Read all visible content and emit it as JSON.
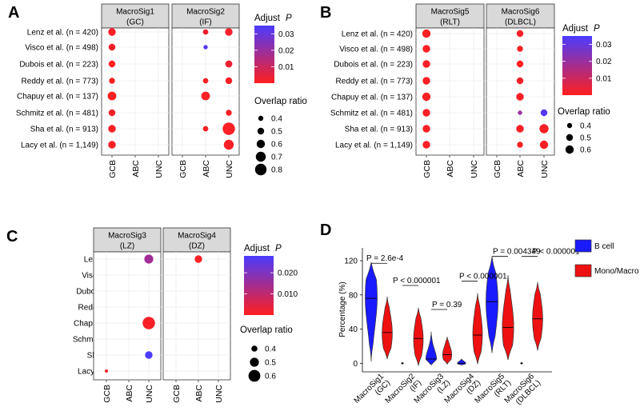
{
  "studies": [
    "Lenz et al. (n = 420)",
    "Visco et al. (n = 498)",
    "Dubois et al. (n = 223)",
    "Reddy et al. (n = 773)",
    "Chapuy et al. (n = 137)",
    "Schmitz et al. (n = 481)",
    "Sha et al. (n = 913)",
    "Lacy et al. (n = 1,149)"
  ],
  "subtypes": [
    "GCB",
    "ABC",
    "UNC"
  ],
  "panels": [
    {
      "id": "A",
      "label": "A",
      "chart_data": {
        "type": "scatter",
        "facets": [
          {
            "title": [
              "MacroSig1",
              "(GC)"
            ],
            "points": [
              {
                "study": 0,
                "subtype": "GCB",
                "ratio": 0.55,
                "p": 0.001
              },
              {
                "study": 1,
                "subtype": "GCB",
                "ratio": 0.5,
                "p": 0.001
              },
              {
                "study": 2,
                "subtype": "GCB",
                "ratio": 0.5,
                "p": 0.001
              },
              {
                "study": 3,
                "subtype": "GCB",
                "ratio": 0.45,
                "p": 0.001
              },
              {
                "study": 4,
                "subtype": "GCB",
                "ratio": 0.62,
                "p": 0.001
              },
              {
                "study": 5,
                "subtype": "GCB",
                "ratio": 0.5,
                "p": 0.001
              },
              {
                "study": 6,
                "subtype": "GCB",
                "ratio": 0.55,
                "p": 0.001
              },
              {
                "study": 7,
                "subtype": "GCB",
                "ratio": 0.55,
                "p": 0.001
              }
            ]
          },
          {
            "title": [
              "MacroSig2",
              "(IF)"
            ],
            "points": [
              {
                "study": 0,
                "subtype": "ABC",
                "ratio": 0.42,
                "p": 0.002
              },
              {
                "study": 0,
                "subtype": "UNC",
                "ratio": 0.55,
                "p": 0.002
              },
              {
                "study": 1,
                "subtype": "ABC",
                "ratio": 0.35,
                "p": 0.033
              },
              {
                "study": 2,
                "subtype": "UNC",
                "ratio": 0.52,
                "p": 0.003
              },
              {
                "study": 3,
                "subtype": "ABC",
                "ratio": 0.42,
                "p": 0.001
              },
              {
                "study": 3,
                "subtype": "UNC",
                "ratio": 0.5,
                "p": 0.001
              },
              {
                "study": 4,
                "subtype": "ABC",
                "ratio": 0.62,
                "p": 0.001
              },
              {
                "study": 5,
                "subtype": "UNC",
                "ratio": 0.45,
                "p": 0.001
              },
              {
                "study": 6,
                "subtype": "ABC",
                "ratio": 0.42,
                "p": 0.001
              },
              {
                "study": 6,
                "subtype": "UNC",
                "ratio": 0.85,
                "p": 0.001
              },
              {
                "study": 7,
                "subtype": "UNC",
                "ratio": 0.7,
                "p": 0.001
              }
            ]
          }
        ],
        "color_legend": {
          "title": "Adjust",
          "title_italic": "P",
          "ticks": [
            "0.03",
            "0.02",
            "0.01"
          ],
          "tick_values": [
            0.03,
            0.02,
            0.01
          ],
          "range": [
            0,
            0.035
          ],
          "low_color": "#ff1f1f",
          "high_color": "#4b3bff"
        },
        "size_legend": {
          "title": "Overlap ratio",
          "labels": [
            "0.4",
            "0.5",
            "0.6",
            "0.7",
            "0.8"
          ],
          "values": [
            0.4,
            0.5,
            0.6,
            0.7,
            0.8
          ]
        }
      }
    },
    {
      "id": "B",
      "label": "B",
      "chart_data": {
        "type": "scatter",
        "facets": [
          {
            "title": [
              "MacroSig5",
              "(RLT)"
            ],
            "points": [
              {
                "study": 0,
                "subtype": "GCB",
                "ratio": 0.6,
                "p": 0.001
              },
              {
                "study": 1,
                "subtype": "GCB",
                "ratio": 0.55,
                "p": 0.001
              },
              {
                "study": 2,
                "subtype": "GCB",
                "ratio": 0.55,
                "p": 0.001
              },
              {
                "study": 3,
                "subtype": "GCB",
                "ratio": 0.55,
                "p": 0.001
              },
              {
                "study": 4,
                "subtype": "GCB",
                "ratio": 0.6,
                "p": 0.001
              },
              {
                "study": 5,
                "subtype": "GCB",
                "ratio": 0.55,
                "p": 0.001
              },
              {
                "study": 6,
                "subtype": "GCB",
                "ratio": 0.55,
                "p": 0.001
              },
              {
                "study": 7,
                "subtype": "GCB",
                "ratio": 0.55,
                "p": 0.001
              }
            ]
          },
          {
            "title": [
              "MacroSig6",
              "(DLBCL)"
            ],
            "points": [
              {
                "study": 0,
                "subtype": "ABC",
                "ratio": 0.5,
                "p": 0.001
              },
              {
                "study": 1,
                "subtype": "ABC",
                "ratio": 0.45,
                "p": 0.001
              },
              {
                "study": 2,
                "subtype": "ABC",
                "ratio": 0.5,
                "p": 0.001
              },
              {
                "study": 3,
                "subtype": "ABC",
                "ratio": 0.5,
                "p": 0.001
              },
              {
                "study": 4,
                "subtype": "ABC",
                "ratio": 0.55,
                "p": 0.001
              },
              {
                "study": 5,
                "subtype": "ABC",
                "ratio": 0.35,
                "p": 0.02
              },
              {
                "study": 5,
                "subtype": "UNC",
                "ratio": 0.5,
                "p": 0.033
              },
              {
                "study": 6,
                "subtype": "ABC",
                "ratio": 0.55,
                "p": 0.001
              },
              {
                "study": 6,
                "subtype": "UNC",
                "ratio": 0.65,
                "p": 0.001
              },
              {
                "study": 7,
                "subtype": "ABC",
                "ratio": 0.45,
                "p": 0.001
              },
              {
                "study": 7,
                "subtype": "UNC",
                "ratio": 0.6,
                "p": 0.001
              }
            ]
          }
        ],
        "color_legend": {
          "title": "Adjust",
          "title_italic": "P",
          "ticks": [
            "0.03",
            "0.02",
            "0.01"
          ],
          "tick_values": [
            0.03,
            0.02,
            0.01
          ],
          "range": [
            0,
            0.035
          ],
          "low_color": "#ff1f1f",
          "high_color": "#4b3bff"
        },
        "size_legend": {
          "title": "Overlap ratio",
          "labels": [
            "0.4",
            "0.5",
            "0.6"
          ],
          "values": [
            0.4,
            0.5,
            0.6
          ]
        }
      }
    },
    {
      "id": "C",
      "label": "C",
      "chart_data": {
        "type": "scatter",
        "facets": [
          {
            "title": [
              "MacroSig3",
              "(LZ)"
            ],
            "points": [
              {
                "study": 0,
                "subtype": "UNC",
                "ratio": 0.5,
                "p": 0.015
              },
              {
                "study": 4,
                "subtype": "UNC",
                "ratio": 0.62,
                "p": 0.001
              },
              {
                "study": 6,
                "subtype": "UNC",
                "ratio": 0.45,
                "p": 0.028
              },
              {
                "study": 7,
                "subtype": "GCB",
                "ratio": 0.3,
                "p": 0.001
              }
            ]
          },
          {
            "title": [
              "MacroSig4",
              "(DZ)"
            ],
            "points": [
              {
                "study": 0,
                "subtype": "ABC",
                "ratio": 0.45,
                "p": 0.001
              }
            ]
          }
        ],
        "color_legend": {
          "title": "Adjust",
          "title_italic": "P",
          "ticks": [
            "0.020",
            "0.010"
          ],
          "tick_values": [
            0.02,
            0.01
          ],
          "range": [
            0,
            0.028
          ],
          "low_color": "#ff1f1f",
          "high_color": "#4b3bff"
        },
        "size_legend": {
          "title": "Overlap ratio",
          "labels": [
            "0.4",
            "0.5",
            "0.6"
          ],
          "values": [
            0.4,
            0.5,
            0.6
          ]
        }
      }
    },
    {
      "id": "D",
      "label": "D",
      "chart_data": {
        "type": "violin",
        "ylabel": "Percentage (%)",
        "ylim": [
          -10,
          135
        ],
        "yticks": [
          0,
          40,
          80,
          120
        ],
        "ytick_labels": [
          "0",
          "40",
          "80",
          "120"
        ],
        "categories": [
          [
            "MacroSig1",
            "(GC)"
          ],
          [
            "MacroSig2",
            "(IF)"
          ],
          [
            "MacroSig3",
            "(LZ)"
          ],
          [
            "MacroSig4",
            "(DZ)"
          ],
          [
            "MacroSig5",
            "(RLT)"
          ],
          [
            "MacroSig6",
            "(DLBCL)"
          ]
        ],
        "series": [
          {
            "name": "B cell",
            "color": "#1a1aff",
            "violins": [
              {
                "min": 2,
                "max": 118,
                "median": 76,
                "mode": 78,
                "width": 1.0
              },
              {
                "min": -1,
                "max": 1,
                "median": 0,
                "mode": 0,
                "width": 0.15
              },
              {
                "min": -2,
                "max": 37,
                "median": 5,
                "mode": 4,
                "width": 0.9
              },
              {
                "min": -2,
                "max": 5,
                "median": 0,
                "mode": 0,
                "width": 0.7
              },
              {
                "min": 12,
                "max": 125,
                "median": 72,
                "mode": 72,
                "width": 1.0
              },
              {
                "min": -1,
                "max": 1,
                "median": 0,
                "mode": 0,
                "width": 0.15
              }
            ]
          },
          {
            "name": "Mono/Macro",
            "color": "#ee1111",
            "violins": [
              {
                "min": 5,
                "max": 78,
                "median": 36,
                "mode": 35,
                "width": 0.85
              },
              {
                "min": -3,
                "max": 65,
                "median": 29,
                "mode": 28,
                "width": 0.8
              },
              {
                "min": -1,
                "max": 31,
                "median": 10,
                "mode": 10,
                "width": 0.75
              },
              {
                "min": -1,
                "max": 82,
                "median": 33,
                "mode": 34,
                "width": 0.8
              },
              {
                "min": 4,
                "max": 103,
                "median": 42,
                "mode": 42,
                "width": 0.95
              },
              {
                "min": 15,
                "max": 95,
                "median": 52,
                "mode": 52,
                "width": 0.85
              }
            ]
          }
        ],
        "pvalues": [
          "P = 2.6e-4",
          "P < 0.000001",
          "P = 0.39",
          "P < 0.000001",
          "P = 0.004349",
          "P < 0.000001"
        ],
        "legend": [
          "B cell",
          "Mono/Macro"
        ]
      }
    }
  ]
}
